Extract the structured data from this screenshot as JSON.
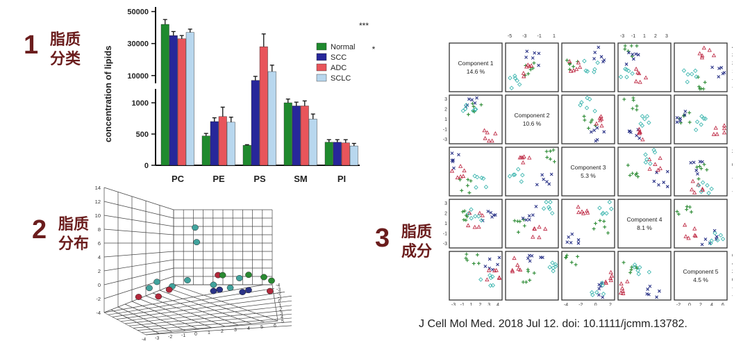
{
  "sections": [
    {
      "num": "1",
      "line1": "脂质",
      "line2": "分类"
    },
    {
      "num": "2",
      "line1": "脂质",
      "line2": "分布"
    },
    {
      "num": "3",
      "line1": "脂质",
      "line2": "成分"
    }
  ],
  "citation": "J Cell Mol Med. 2018 Jul 12. doi: 10.1111/jcmm.13782.",
  "chart_data": [
    {
      "type": "bar",
      "ylabel": "concentration of lipids",
      "categories": [
        "PC",
        "PE",
        "PS",
        "SM",
        "PI"
      ],
      "y_ticks_lower": [
        "0",
        "500",
        "1000"
      ],
      "y_ticks_upper": [
        "10000",
        "30000",
        "50000"
      ],
      "axis_break": true,
      "series": [
        {
          "name": "Normal",
          "color": "#1f8a2e",
          "values": [
            42000,
            470,
            320,
            1000,
            370
          ],
          "errors": [
            3000,
            40,
            10,
            60,
            40
          ]
        },
        {
          "name": "SCC",
          "color": "#27279a",
          "values": [
            35000,
            700,
            7000,
            950,
            370
          ],
          "errors": [
            2500,
            60,
            2500,
            60,
            40
          ]
        },
        {
          "name": "ADC",
          "color": "#e8555b",
          "values": [
            33000,
            780,
            28000,
            950,
            360
          ],
          "errors": [
            2000,
            150,
            8000,
            80,
            50
          ]
        },
        {
          "name": "SCLC",
          "color": "#b8d7ee",
          "values": [
            37000,
            690,
            12500,
            740,
            310
          ],
          "errors": [
            2000,
            80,
            4000,
            80,
            40
          ]
        }
      ],
      "annotations": [
        "***",
        "*"
      ]
    },
    {
      "type": "scatter",
      "dimensions": 3,
      "z_ticks": [
        "-4",
        "-2",
        "0",
        "2",
        "4",
        "6",
        "8",
        "10",
        "12",
        "14"
      ],
      "floor_ticks_x": [
        "-4",
        "-3",
        "-2",
        "-1",
        "0",
        "1",
        "2",
        "3",
        "4",
        "5",
        "6"
      ],
      "floor_ticks_y": [
        "-4",
        "-3",
        "-2",
        "-1",
        "0",
        "1",
        "2",
        "3",
        "4",
        "5"
      ],
      "series": [
        {
          "name": "teal",
          "color": "#41a39d",
          "points": [
            [
              1.5,
              0,
              8.4
            ],
            [
              1.6,
              0,
              6.3
            ],
            [
              -1.5,
              0,
              -0.4
            ],
            [
              -1,
              0,
              0.5
            ],
            [
              0,
              0,
              -0.1
            ],
            [
              3.8,
              0,
              -0.2
            ],
            [
              4.4,
              0,
              1.2
            ],
            [
              1,
              0,
              0.8
            ],
            [
              2.7,
              0,
              0.2
            ]
          ]
        },
        {
          "name": "red",
          "color": "#b2283b",
          "points": [
            [
              -2.2,
              0,
              -1.7
            ],
            [
              -0.9,
              0,
              -1.6
            ],
            [
              -0.2,
              0,
              -0.6
            ],
            [
              3,
              0,
              1.6
            ],
            [
              6.4,
              0,
              -0.6
            ]
          ]
        },
        {
          "name": "blue",
          "color": "#2b3488",
          "points": [
            [
              2.7,
              0,
              -0.7
            ],
            [
              3.1,
              0,
              -0.5
            ],
            [
              4.6,
              0,
              -0.8
            ],
            [
              5,
              0,
              -0.5
            ]
          ]
        },
        {
          "name": "green",
          "color": "#2a8a32",
          "points": [
            [
              3.3,
              0,
              1.6
            ],
            [
              5,
              0,
              1.7
            ],
            [
              6,
              0,
              1.4
            ],
            [
              6.5,
              0,
              0.9
            ]
          ]
        }
      ]
    },
    {
      "type": "scatter-matrix",
      "components": [
        {
          "label": "Component 1",
          "pct": "14.6 %"
        },
        {
          "label": "Component 2",
          "pct": "10.6 %"
        },
        {
          "label": "Component 3",
          "pct": "5.3 %"
        },
        {
          "label": "Component 4",
          "pct": "8.1 %"
        },
        {
          "label": "Component 5",
          "pct": "4.5 %"
        }
      ],
      "top_ticks": [
        [
          "-5",
          "-3",
          "-1",
          "1"
        ],
        [
          "-3",
          "-1",
          "1",
          "2",
          "3"
        ]
      ],
      "bottom_ticks": [
        [
          "-3",
          "-1",
          "1",
          "2",
          "3",
          "4"
        ],
        [
          "-4",
          "-2",
          "0",
          "2"
        ],
        [
          "-2",
          "0",
          "2",
          "4",
          "6"
        ]
      ],
      "right_ticks": [
        [
          "-4",
          "-1",
          "1",
          "2",
          "3",
          "4"
        ],
        [
          "-4",
          "-2",
          "0",
          "2"
        ],
        [
          "-4",
          "-2",
          "0",
          "2",
          "4",
          "6"
        ]
      ],
      "left_ticks": [
        [
          "-3",
          "-1",
          "1",
          "2",
          "3"
        ],
        [
          "-3",
          "-1",
          "1",
          "2",
          "3"
        ]
      ],
      "marker_colors": {
        "normal": "#2a8a32",
        "scc": "#2b3488",
        "adc": "#c0304a",
        "sclc": "#40b7b0"
      }
    }
  ]
}
